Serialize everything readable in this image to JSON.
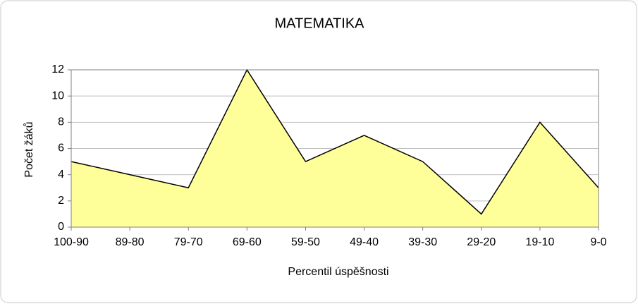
{
  "chart_data": {
    "type": "area",
    "title": "MATEMATIKA",
    "x_label": "Percentil úspěšnosti",
    "y_label": "Počet žáků",
    "categories": [
      "100-90",
      "89-80",
      "79-70",
      "69-60",
      "59-50",
      "49-40",
      "39-30",
      "29-20",
      "19-10",
      "9-0"
    ],
    "values": [
      5,
      4,
      3,
      12,
      5,
      7,
      5,
      1,
      8,
      3
    ],
    "color": "#ffff99",
    "line_color": "#000000",
    "ylim": [
      0,
      12
    ],
    "yticks": [
      0,
      2,
      4,
      6,
      8,
      10,
      12
    ],
    "grid": true
  }
}
